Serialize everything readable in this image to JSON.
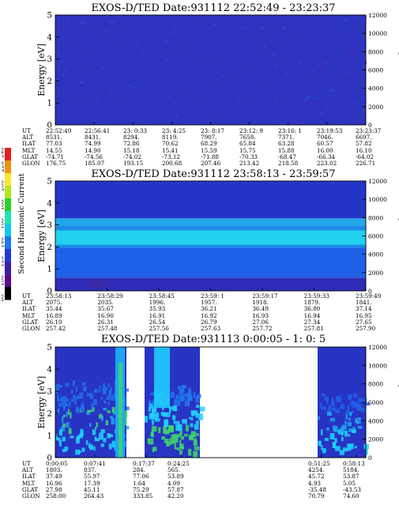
{
  "colors": {
    "low": "#2b2bb8",
    "mid": "#3fb7e6",
    "high": "#1ed6ff",
    "green": "#3fd86a",
    "dark_blue": "#1c24c8",
    "bg": "#ffffff"
  },
  "colorbar": {
    "label": "Second Harmonic Current",
    "ticks": [
      "80",
      "100",
      "120",
      "140",
      "160",
      "180",
      "200",
      "220",
      "240"
    ],
    "colors": [
      "#000000",
      "#5a0a8a",
      "#3a1ea8",
      "#1e3cd2",
      "#1e78f0",
      "#14c8f0",
      "#1ee6b4",
      "#28d228",
      "#b4e61e",
      "#fae632",
      "#f09614",
      "#e61e1e"
    ]
  },
  "panels": [
    {
      "title": "EXOS-D/TED   Date:931112  22:52:49 - 23:23:37",
      "ylabel": "Energy [eV]",
      "ylabel_right": "Temperature [K]",
      "left_ticks": [
        "0",
        "1",
        "2",
        "3",
        "4",
        "5"
      ],
      "right_ticks": [
        "0",
        "2000",
        "4000",
        "6000",
        "8000",
        "10000",
        "12000"
      ],
      "ephemeris": {
        "labels": [
          "UT",
          "ALT",
          "ILAT",
          "MLT",
          "GLAT",
          "GLON"
        ],
        "columns": [
          [
            "22:52:49",
            "8531.",
            "77.03",
            "14.55",
            "-74.71",
            "176.75"
          ],
          [
            "22:56:41",
            "8431.",
            "74.99",
            "14.90",
            "-74.56",
            "185.07"
          ],
          [
            "23: 0:33",
            "8294.",
            "72.86",
            "15.18",
            "-74.02",
            "193.15"
          ],
          [
            "23: 4:25",
            "8119.",
            "70.62",
            "15.41",
            "-73.12",
            "200.68"
          ],
          [
            "23: 8:17",
            "7907.",
            "68.29",
            "15.59",
            "-71.88",
            "207.46"
          ],
          [
            "23:12: 9",
            "7658.",
            "65.84",
            "15.75",
            "-70.33",
            "213.42"
          ],
          [
            "23:16: 1",
            "7371.",
            "63.28",
            "15.88",
            "-68.47",
            "218.58"
          ],
          [
            "23:19:53",
            "7046.",
            "60.57",
            "16.00",
            "-66.34",
            "223.02"
          ],
          [
            "23:23:37",
            "6697.",
            "57.82",
            "16.10",
            "-64.02",
            "226.71"
          ]
        ]
      }
    },
    {
      "title": "EXOS-D/TED   Date:931112  23:58:13 - 23:59:57",
      "ylabel": "Energy [eV]",
      "ylabel_right": "Temperature [K]",
      "left_ticks": [
        "0",
        "1",
        "2",
        "3",
        "4",
        "5"
      ],
      "right_ticks": [
        "0",
        "2000",
        "4000",
        "6000",
        "8000",
        "10000",
        "12000"
      ],
      "ephemeris": {
        "labels": [
          "UT",
          "ALT",
          "ILAT",
          "MLT",
          "GLAT",
          "GLON"
        ],
        "columns": [
          [
            "23:58:13",
            "2075.",
            "35.44",
            "16.89",
            "26.10",
            "257.42"
          ],
          [
            "23:58:29",
            "2035.",
            "35.67",
            "16.90",
            "26.31",
            "257.48"
          ],
          [
            "23:58:45",
            "1996.",
            "35.93",
            "16.91",
            "26.54",
            "257.56"
          ],
          [
            "23:59: 1",
            "1957.",
            "36.21",
            "16.92",
            "26.79",
            "257.63"
          ],
          [
            "23:59:17",
            "1918.",
            "36.49",
            "16.93",
            "27.06",
            "257.72"
          ],
          [
            "23:59:33",
            "1879.",
            "36.80",
            "16.94",
            "27.34",
            "257.81"
          ],
          [
            "23:59:49",
            "1841.",
            "37.14",
            "16.95",
            "27.65",
            "257.90"
          ]
        ]
      }
    },
    {
      "title": "EXOS-D/TED   Date:931113  0:00:05 - 1: 0: 5",
      "ylabel": "Energy [eV]",
      "ylabel_right": "Temperature [K]",
      "left_ticks": [
        "0",
        "1",
        "2",
        "3",
        "4",
        "5"
      ],
      "right_ticks": [
        "0",
        "2000",
        "4000",
        "6000",
        "8000",
        "10000",
        "12000"
      ],
      "ephemeris": {
        "labels": [
          "UT",
          "ALT",
          "ILAT",
          "MLT",
          "GLAT",
          "GLON"
        ],
        "columns": [
          [
            "0:00:05",
            "1803.",
            "37.49",
            "16.96",
            "27.98",
            "258.00"
          ],
          [
            "0:07:41",
            "837.",
            "55.97",
            "17.39",
            "45.11",
            "264.43"
          ],
          [
            "0:17:37",
            "284.",
            "77.06",
            "1.64",
            "75.29",
            "333.85"
          ],
          [
            "0:24:25",
            "565.",
            "53.89",
            "4.09",
            "57.87",
            "42.20"
          ],
          [
            "0:51:25",
            "4254.",
            "45.72",
            "4.93",
            "-35.48",
            "70.79"
          ],
          [
            "0:58:13",
            "5184.",
            "53.87",
            "5.05",
            "-43.53",
            "74.60"
          ]
        ]
      }
    }
  ],
  "chart_data": [
    {
      "type": "heatmap",
      "title": "EXOS-D/TED   Date:931112  22:52:49 - 23:23:37",
      "ylabel": "Energy [eV]",
      "ylabel_right": "Temperature [K]",
      "ylim": [
        0,
        5
      ],
      "ylim_right": [
        0,
        12000
      ],
      "x_ticks": [
        "22:52:49",
        "22:56:41",
        "23: 0:33",
        "23: 4:25",
        "23: 8:17",
        "23:12: 9",
        "23:16: 1",
        "23:19:53",
        "23:23:37"
      ],
      "description_level": "uniformly low (dark blue-purple) across all energies"
    },
    {
      "type": "heatmap",
      "title": "EXOS-D/TED   Date:931112  23:58:13 - 23:59:57",
      "ylabel": "Energy [eV]",
      "ylabel_right": "Temperature [K]",
      "ylim": [
        0,
        5
      ],
      "ylim_right": [
        0,
        12000
      ],
      "x_ticks": [
        "23:58:13",
        "23:58:29",
        "23:58:45",
        "23:59: 1",
        "23:59:17",
        "23:59:33",
        "23:59:49"
      ],
      "bands": [
        {
          "emin": 0.0,
          "emax": 0.6,
          "level": 120
        },
        {
          "emin": 0.6,
          "emax": 1.6,
          "level": 140
        },
        {
          "emin": 1.6,
          "emax": 2.0,
          "level": 145
        },
        {
          "emin": 2.0,
          "emax": 2.8,
          "level": 165
        },
        {
          "emin": 2.8,
          "emax": 3.3,
          "level": 150
        },
        {
          "emin": 3.3,
          "emax": 5.0,
          "level": 130
        }
      ]
    },
    {
      "type": "heatmap",
      "title": "EXOS-D/TED   Date:931113  0:00:05 - 1: 0: 5",
      "ylabel": "Energy [eV]",
      "ylabel_right": "Temperature [K]",
      "ylim": [
        0,
        5
      ],
      "ylim_right": [
        0,
        12000
      ],
      "x_ticks": [
        "0:00:05",
        "0:07:41",
        "0:17:37",
        "0:24:25",
        "0:51:25",
        "0:58:13"
      ],
      "coverage": [
        {
          "from": "0:00:05",
          "to": "0:15:40"
        },
        {
          "from": "0:18:20",
          "to": "0:26:30"
        },
        {
          "from": "0:51:25",
          "to": "1: 0: 5"
        }
      ]
    }
  ]
}
